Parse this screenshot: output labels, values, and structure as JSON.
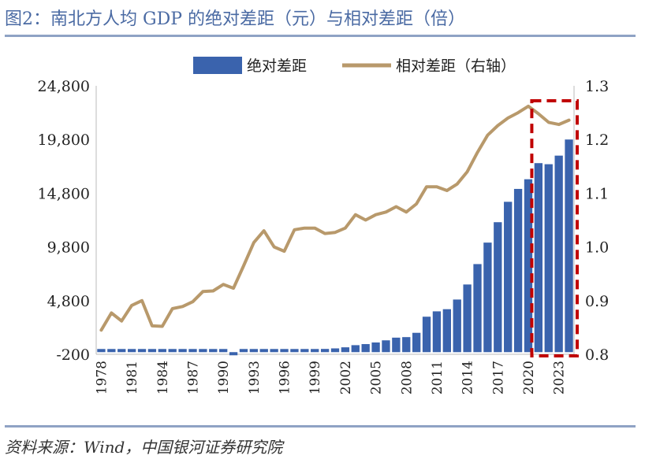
{
  "header": {
    "title": "图2：南北方人均 GDP 的绝对差距（元）与相对差距（倍）"
  },
  "footer": {
    "source": "资料来源：Wind，中国银河证券研究院"
  },
  "colors": {
    "bar": "#3a63ad",
    "line": "#b8996b",
    "highlight": "#c00000",
    "title": "#4a6aa3"
  },
  "chart_data": {
    "type": "bar+line",
    "title": "",
    "legend_position": "top-center",
    "x": [
      1978,
      1979,
      1980,
      1981,
      1982,
      1983,
      1984,
      1985,
      1986,
      1987,
      1988,
      1989,
      1990,
      1991,
      1992,
      1993,
      1994,
      1995,
      1996,
      1997,
      1998,
      1999,
      2000,
      2001,
      2002,
      2003,
      2004,
      2005,
      2006,
      2007,
      2008,
      2009,
      2010,
      2011,
      2012,
      2013,
      2014,
      2015,
      2016,
      2017,
      2018,
      2019,
      2020,
      2021,
      2022,
      2023,
      2024
    ],
    "x_tick_labels": [
      "1978",
      "1981",
      "1984",
      "1987",
      "1990",
      "1993",
      "1996",
      "1999",
      "2002",
      "2005",
      "2008",
      "2011",
      "2014",
      "2017",
      "2020",
      "2023"
    ],
    "series": [
      {
        "name": "绝对差距",
        "type": "bar",
        "axis": "left",
        "values": [
          30,
          20,
          30,
          40,
          30,
          20,
          10,
          0,
          10,
          20,
          40,
          50,
          30,
          -10,
          10,
          50,
          150,
          100,
          60,
          150,
          200,
          250,
          300,
          350,
          450,
          650,
          750,
          900,
          1100,
          1350,
          1400,
          1800,
          3300,
          3800,
          4000,
          4900,
          6300,
          8200,
          10200,
          12100,
          14000,
          15200,
          16100,
          17600,
          17500,
          18300,
          19800
        ]
      },
      {
        "name": "相对差距（右轴）",
        "type": "line",
        "axis": "right",
        "values": [
          0.845,
          0.877,
          0.862,
          0.891,
          0.9,
          0.853,
          0.852,
          0.885,
          0.889,
          0.898,
          0.917,
          0.918,
          0.93,
          0.923,
          0.965,
          1.008,
          1.03,
          1.0,
          0.992,
          1.032,
          1.035,
          1.035,
          1.025,
          1.027,
          1.035,
          1.06,
          1.05,
          1.06,
          1.065,
          1.075,
          1.065,
          1.08,
          1.112,
          1.112,
          1.105,
          1.117,
          1.14,
          1.176,
          1.208,
          1.226,
          1.24,
          1.25,
          1.262,
          1.248,
          1.232,
          1.228,
          1.236
        ]
      }
    ],
    "y_left": {
      "min": -200,
      "max": 24800,
      "ticks": [
        "-200",
        "4,800",
        "9,800",
        "14,800",
        "19,800",
        "24,800"
      ]
    },
    "y_right": {
      "min": 0.8,
      "max": 1.3,
      "ticks": [
        "0.8",
        "0.9",
        "1.0",
        "1.1",
        "1.2",
        "1.3"
      ]
    },
    "highlight": {
      "from": 2021,
      "to": 2024,
      "style": "dashed-box"
    }
  }
}
